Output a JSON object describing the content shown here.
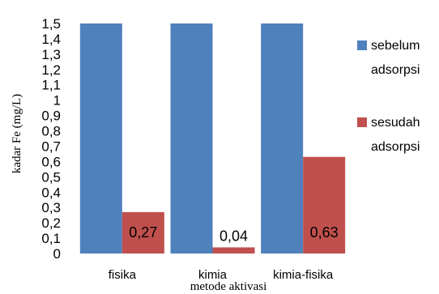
{
  "chart_data": {
    "type": "bar",
    "categories": [
      "fisika",
      "kimia",
      "kimia-fisika"
    ],
    "series": [
      {
        "name": "sebelum adsorpsi",
        "values": [
          1.5,
          1.5,
          1.5
        ],
        "color": "#4F81BD"
      },
      {
        "name": "sesudah adsorpsi",
        "values": [
          0.27,
          0.04,
          0.63
        ],
        "color": "#C0504D",
        "data_labels": [
          "0,27",
          "0,04",
          "0,63"
        ]
      }
    ],
    "xlabel": "metode aktivasi",
    "ylabel": "kadar Fe (mg/L)",
    "ylim": [
      0,
      1.5
    ],
    "yticks": [
      "0",
      "0,1",
      "0,2",
      "0,3",
      "0,4",
      "0,5",
      "0,6",
      "0,7",
      "0,8",
      "0,9",
      "1",
      "1,1",
      "1,2",
      "1,3",
      "1,4",
      "1,5"
    ],
    "grid": false,
    "legend_position": "right",
    "legend": [
      {
        "lines": [
          "sebelum",
          "adsorpsi"
        ],
        "color": "#4F81BD"
      },
      {
        "lines": [
          "sesudah",
          "adsorpsi"
        ],
        "color": "#C0504D"
      }
    ]
  }
}
